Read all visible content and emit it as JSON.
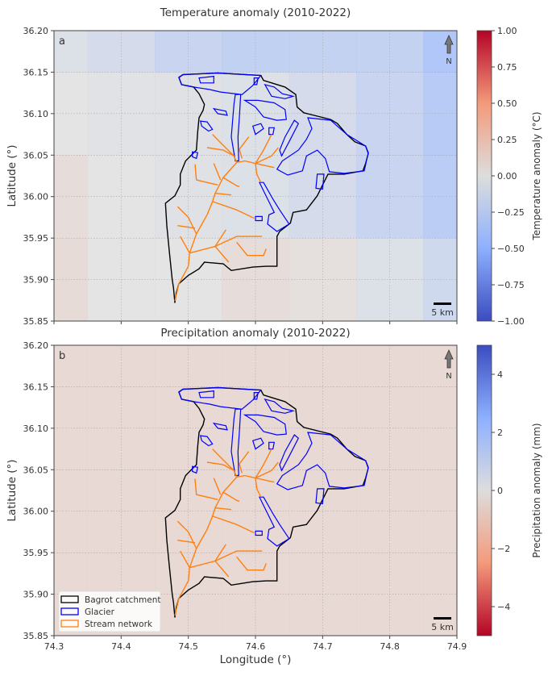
{
  "figure": {
    "xlabel": "Longitude (°)",
    "ylabel": "Latitude (°)",
    "xticks": [
      "74.3",
      "74.4",
      "74.5",
      "74.6",
      "74.7",
      "74.8",
      "74.9"
    ],
    "yticks": [
      "35.85",
      "35.90",
      "35.95",
      "36.00",
      "36.05",
      "36.10",
      "36.15",
      "36.20"
    ],
    "north_label": "N",
    "scale_label": "5 km",
    "legend": [
      {
        "label": "Bagrot catchment",
        "color": "#000000"
      },
      {
        "label": "Glacier",
        "color": "#0000ff"
      },
      {
        "label": "Stream network",
        "color": "#ff7f0e"
      }
    ]
  },
  "chart_data": [
    {
      "type": "heatmap",
      "panel_label": "a",
      "title": "Temperature anomaly (2010-2022)",
      "colorbar_label": "Temperature anomaly (°C)",
      "colormap": "coolwarm",
      "clim": [
        -1,
        1
      ],
      "colorbar_ticks": [
        "1.00",
        "0.75",
        "0.50",
        "0.25",
        "0.00",
        "−0.25",
        "−0.50",
        "−0.75",
        "−1.00"
      ],
      "xlim": [
        74.3,
        74.9
      ],
      "ylim": [
        35.85,
        36.2
      ],
      "grid": true,
      "cell_lon": [
        74.3,
        74.4,
        74.5,
        74.6,
        74.7,
        74.8,
        74.9
      ],
      "cell_lat": [
        36.2,
        36.1,
        36.0,
        35.9
      ],
      "values": [
        [
          -0.06,
          -0.12,
          -0.22,
          -0.27,
          -0.25,
          -0.25,
          -0.4
        ],
        [
          0.0,
          -0.02,
          -0.03,
          -0.06,
          -0.12,
          -0.22,
          -0.35
        ],
        [
          0.06,
          0.0,
          -0.03,
          -0.06,
          -0.12,
          -0.22,
          -0.32
        ],
        [
          0.08,
          0.0,
          0.0,
          0.06,
          0.04,
          -0.06,
          -0.16
        ]
      ]
    },
    {
      "type": "heatmap",
      "panel_label": "b",
      "title": "Precipitation anomaly (2010-2022)",
      "colorbar_label": "Precipitation anomaly (mm)",
      "colormap": "coolwarm_r",
      "clim": [
        -5,
        5
      ],
      "colorbar_ticks": [
        "4",
        "2",
        "0",
        "−2",
        "−4"
      ],
      "xlim": [
        74.3,
        74.9
      ],
      "ylim": [
        35.85,
        36.2
      ],
      "grid": true,
      "cell_lon": [
        74.3,
        74.4,
        74.5,
        74.6,
        74.7,
        74.8,
        74.9
      ],
      "cell_lat": [
        36.2,
        36.1,
        36.0,
        35.9
      ],
      "values": [
        [
          -0.5,
          -0.5,
          -0.5,
          -0.5,
          -0.5,
          -0.5,
          -0.5
        ],
        [
          -0.5,
          -0.5,
          -0.5,
          -0.5,
          -0.5,
          -0.5,
          -0.5
        ],
        [
          -0.5,
          -0.5,
          -0.5,
          -0.5,
          -0.5,
          -0.5,
          -0.5
        ],
        [
          -0.5,
          -0.5,
          -0.5,
          -0.5,
          -0.5,
          -0.5,
          -0.5
        ]
      ]
    }
  ],
  "geometry": {
    "catchment": [
      [
        74.486,
        36.1435
      ],
      [
        74.492,
        36.147
      ],
      [
        74.544,
        36.149
      ],
      [
        74.608,
        36.146
      ],
      [
        74.612,
        36.14
      ],
      [
        74.644,
        36.132
      ],
      [
        74.66,
        36.123
      ],
      [
        74.662,
        36.108
      ],
      [
        74.672,
        36.101
      ],
      [
        74.712,
        36.093
      ],
      [
        74.722,
        36.088
      ],
      [
        74.736,
        36.075
      ],
      [
        74.748,
        36.066
      ],
      [
        74.764,
        36.061
      ],
      [
        74.768,
        36.052
      ],
      [
        74.764,
        36.04
      ],
      [
        74.76,
        36.031
      ],
      [
        74.732,
        36.027
      ],
      [
        74.708,
        36.027
      ],
      [
        74.7,
        36.014
      ],
      [
        74.692,
        36.001
      ],
      [
        74.676,
        35.984
      ],
      [
        74.656,
        35.981
      ],
      [
        74.652,
        35.968
      ],
      [
        74.636,
        35.958
      ],
      [
        74.632,
        35.952
      ],
      [
        74.632,
        35.916
      ],
      [
        74.616,
        35.916
      ],
      [
        74.596,
        35.915
      ],
      [
        74.564,
        35.911
      ],
      [
        74.552,
        35.919
      ],
      [
        74.524,
        35.921
      ],
      [
        74.516,
        35.913
      ],
      [
        74.5,
        35.905
      ],
      [
        74.486,
        35.895
      ],
      [
        74.482,
        35.884
      ],
      [
        74.48,
        35.872
      ],
      [
        74.478,
        35.89
      ],
      [
        74.476,
        35.9
      ],
      [
        74.472,
        35.932
      ],
      [
        74.468,
        35.965
      ],
      [
        74.466,
        35.992
      ],
      [
        74.48,
        36.001
      ],
      [
        74.488,
        36.014
      ],
      [
        74.488,
        36.027
      ],
      [
        74.496,
        36.043
      ],
      [
        74.512,
        36.056
      ],
      [
        74.514,
        36.078
      ],
      [
        74.516,
        36.095
      ],
      [
        74.522,
        36.104
      ],
      [
        74.524,
        36.111
      ],
      [
        74.516,
        36.124
      ],
      [
        74.508,
        36.132
      ],
      [
        74.49,
        36.135
      ]
    ],
    "glaciers": [
      [
        [
          74.486,
          36.144
        ],
        [
          74.492,
          36.147
        ],
        [
          74.544,
          36.149
        ],
        [
          74.608,
          36.146
        ],
        [
          74.596,
          36.134
        ],
        [
          74.58,
          36.123
        ],
        [
          74.548,
          36.126
        ],
        [
          74.532,
          36.129
        ],
        [
          74.508,
          36.132
        ],
        [
          74.49,
          36.135
        ]
      ],
      [
        [
          74.57,
          36.123
        ],
        [
          74.578,
          36.123
        ],
        [
          74.576,
          36.095
        ],
        [
          74.574,
          36.072
        ],
        [
          74.575,
          36.043
        ],
        [
          74.57,
          36.043
        ],
        [
          74.564,
          36.072
        ],
        [
          74.568,
          36.111
        ]
      ],
      [
        [
          74.584,
          36.116
        ],
        [
          74.604,
          36.116
        ],
        [
          74.628,
          36.113
        ],
        [
          74.644,
          36.105
        ],
        [
          74.646,
          36.093
        ],
        [
          74.632,
          36.092
        ],
        [
          74.612,
          36.096
        ],
        [
          74.6,
          36.108
        ]
      ],
      [
        [
          74.678,
          36.095
        ],
        [
          74.712,
          36.092
        ],
        [
          74.736,
          36.075
        ],
        [
          74.764,
          36.061
        ],
        [
          74.768,
          36.053
        ],
        [
          74.762,
          36.031
        ],
        [
          74.732,
          36.028
        ],
        [
          74.71,
          36.03
        ],
        [
          74.704,
          36.046
        ],
        [
          74.692,
          36.056
        ],
        [
          74.676,
          36.049
        ],
        [
          74.67,
          36.031
        ],
        [
          74.648,
          36.026
        ],
        [
          74.632,
          36.033
        ],
        [
          74.64,
          36.043
        ],
        [
          74.664,
          36.056
        ],
        [
          74.676,
          36.069
        ],
        [
          74.684,
          36.082
        ]
      ],
      [
        [
          74.636,
          36.056
        ],
        [
          74.644,
          36.072
        ],
        [
          74.658,
          36.092
        ],
        [
          74.664,
          36.088
        ],
        [
          74.652,
          36.069
        ],
        [
          74.639,
          36.049
        ]
      ],
      [
        [
          74.606,
          36.017
        ],
        [
          74.612,
          36.017
        ],
        [
          74.626,
          35.997
        ],
        [
          74.636,
          35.984
        ],
        [
          74.65,
          35.967
        ],
        [
          74.632,
          35.958
        ],
        [
          74.618,
          35.967
        ],
        [
          74.62,
          35.978
        ],
        [
          74.628,
          35.981
        ],
        [
          74.612,
          36.007
        ]
      ],
      [
        [
          74.518,
          36.091
        ],
        [
          74.528,
          36.09
        ],
        [
          74.536,
          36.081
        ],
        [
          74.53,
          36.079
        ],
        [
          74.52,
          36.085
        ]
      ],
      [
        [
          74.538,
          36.106
        ],
        [
          74.556,
          36.103
        ],
        [
          74.558,
          36.098
        ],
        [
          74.544,
          36.1
        ]
      ],
      [
        [
          74.596,
          36.085
        ],
        [
          74.608,
          36.088
        ],
        [
          74.612,
          36.082
        ],
        [
          74.6,
          36.075
        ]
      ],
      [
        [
          74.62,
          36.083
        ],
        [
          74.628,
          36.083
        ],
        [
          74.626,
          36.075
        ],
        [
          74.62,
          36.075
        ]
      ],
      [
        [
          74.506,
          36.054
        ],
        [
          74.514,
          36.053
        ],
        [
          74.512,
          36.046
        ],
        [
          74.506,
          36.048
        ]
      ],
      [
        [
          74.6,
          35.976
        ],
        [
          74.61,
          35.976
        ],
        [
          74.61,
          35.971
        ],
        [
          74.6,
          35.971
        ]
      ],
      [
        [
          74.692,
          36.027
        ],
        [
          74.702,
          36.027
        ],
        [
          74.7,
          36.009
        ],
        [
          74.69,
          36.01
        ]
      ],
      [
        [
          74.614,
          36.135
        ],
        [
          74.628,
          36.132
        ],
        [
          74.64,
          36.124
        ],
        [
          74.656,
          36.121
        ],
        [
          74.644,
          36.118
        ],
        [
          74.624,
          36.121
        ]
      ],
      [
        [
          74.516,
          36.143
        ],
        [
          74.538,
          36.145
        ],
        [
          74.538,
          36.137
        ],
        [
          74.518,
          36.137
        ]
      ],
      [
        [
          74.598,
          36.143
        ],
        [
          74.604,
          36.143
        ],
        [
          74.602,
          36.135
        ],
        [
          74.598,
          36.135
        ]
      ]
    ],
    "streams": [
      [
        [
          74.48,
          35.874
        ],
        [
          74.486,
          35.895
        ],
        [
          74.5,
          35.916
        ],
        [
          74.502,
          35.932
        ],
        [
          74.512,
          35.955
        ],
        [
          74.528,
          35.978
        ],
        [
          74.536,
          35.994
        ],
        [
          74.54,
          36.004
        ],
        [
          74.552,
          36.023
        ],
        [
          74.572,
          36.041
        ],
        [
          74.584,
          36.043
        ],
        [
          74.6,
          36.04
        ],
        [
          74.608,
          36.043
        ],
        [
          74.624,
          36.049
        ],
        [
          74.634,
          36.059
        ]
      ],
      [
        [
          74.572,
          36.041
        ],
        [
          74.568,
          36.049
        ],
        [
          74.552,
          36.056
        ],
        [
          74.528,
          36.059
        ]
      ],
      [
        [
          74.568,
          36.049
        ],
        [
          74.548,
          36.065
        ],
        [
          74.536,
          36.075
        ]
      ],
      [
        [
          74.58,
          36.046
        ],
        [
          74.576,
          36.057
        ],
        [
          74.59,
          36.072
        ]
      ],
      [
        [
          74.6,
          36.04
        ],
        [
          74.612,
          36.056
        ],
        [
          74.624,
          36.075
        ]
      ],
      [
        [
          74.6,
          36.04
        ],
        [
          74.628,
          36.035
        ]
      ],
      [
        [
          74.6,
          36.04
        ],
        [
          74.602,
          36.027
        ],
        [
          74.608,
          36.017
        ]
      ],
      [
        [
          74.54,
          36.004
        ],
        [
          74.564,
          36.002
        ]
      ],
      [
        [
          74.552,
          36.023
        ],
        [
          74.572,
          36.013
        ],
        [
          74.576,
          36.012
        ]
      ],
      [
        [
          74.536,
          35.994
        ],
        [
          74.572,
          35.984
        ],
        [
          74.598,
          35.974
        ]
      ],
      [
        [
          74.544,
          36.014
        ],
        [
          74.512,
          36.02
        ],
        [
          74.51,
          36.039
        ]
      ],
      [
        [
          74.512,
          35.955
        ],
        [
          74.5,
          35.975
        ],
        [
          74.484,
          35.988
        ]
      ],
      [
        [
          74.51,
          35.962
        ],
        [
          74.484,
          35.965
        ]
      ],
      [
        [
          74.502,
          35.932
        ],
        [
          74.488,
          35.952
        ]
      ],
      [
        [
          74.502,
          35.932
        ],
        [
          74.54,
          35.94
        ],
        [
          74.572,
          35.952
        ],
        [
          74.61,
          35.952
        ]
      ],
      [
        [
          74.54,
          35.94
        ],
        [
          74.56,
          35.921
        ]
      ],
      [
        [
          74.54,
          35.94
        ],
        [
          74.556,
          35.96
        ]
      ],
      [
        [
          74.572,
          35.945
        ],
        [
          74.588,
          35.929
        ],
        [
          74.612,
          35.929
        ],
        [
          74.616,
          35.937
        ]
      ],
      [
        [
          74.548,
          36.02
        ],
        [
          74.538,
          36.04
        ]
      ]
    ]
  }
}
